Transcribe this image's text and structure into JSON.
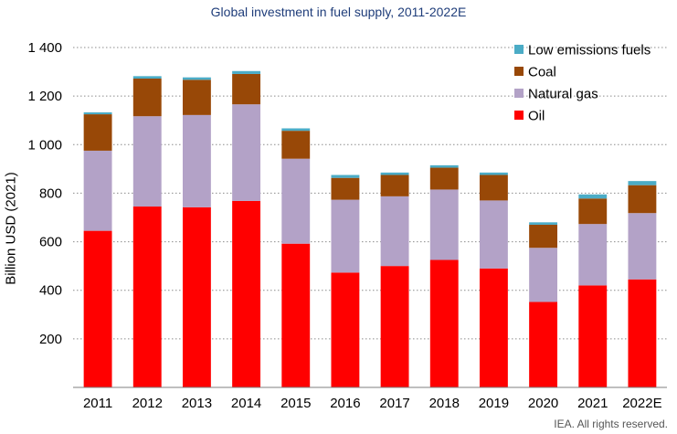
{
  "chart_data": {
    "type": "bar",
    "stacked": true,
    "title": "Global investment in fuel supply, 2011-2022E",
    "ylabel": "Billion USD (2021)",
    "xlabel": "",
    "ylim": [
      0,
      1400
    ],
    "yticks": [
      200,
      400,
      600,
      800,
      1000,
      1200,
      1400
    ],
    "ytick_labels": [
      "200",
      "400",
      "600",
      "800",
      "1 000",
      "1 200",
      "1 400"
    ],
    "grid": "horizontal dotted",
    "legend_position": "top-right",
    "categories": [
      "2011",
      "2012",
      "2013",
      "2014",
      "2015",
      "2016",
      "2017",
      "2018",
      "2019",
      "2020",
      "2021",
      "2022E"
    ],
    "series": [
      {
        "name": "Oil",
        "color": "#ff0000",
        "values": [
          645,
          745,
          742,
          768,
          592,
          473,
          500,
          525,
          490,
          352,
          420,
          445
        ]
      },
      {
        "name": "Natural gas",
        "color": "#b3a2c7",
        "values": [
          330,
          372,
          380,
          398,
          350,
          300,
          287,
          290,
          280,
          223,
          253,
          273
        ]
      },
      {
        "name": "Coal",
        "color": "#984807",
        "values": [
          150,
          155,
          145,
          125,
          115,
          90,
          88,
          90,
          105,
          95,
          105,
          115
        ]
      },
      {
        "name": "Low emissions fuels",
        "color": "#4bacc6",
        "values": [
          8,
          10,
          10,
          12,
          10,
          12,
          10,
          10,
          10,
          10,
          17,
          17
        ]
      }
    ],
    "legend_order": [
      "Low emissions fuels",
      "Coal",
      "Natural gas",
      "Oil"
    ]
  },
  "footer": "IEA. All rights reserved."
}
